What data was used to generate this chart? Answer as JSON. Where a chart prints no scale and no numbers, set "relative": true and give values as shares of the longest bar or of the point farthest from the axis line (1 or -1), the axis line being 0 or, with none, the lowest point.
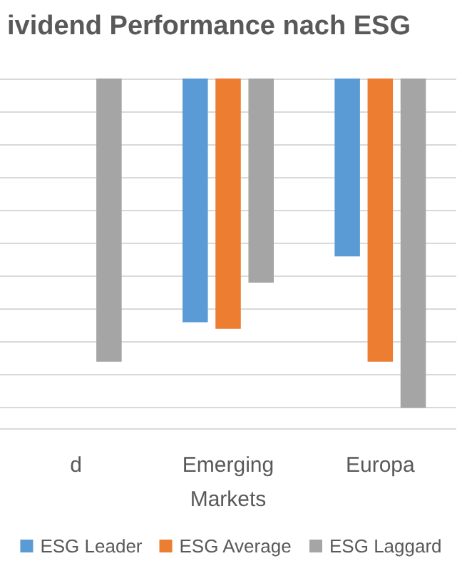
{
  "chart_data": {
    "type": "bar",
    "title": "ividend Performance nach ESG",
    "categories": [
      "d",
      "Emerging\nMarkets",
      "Europa"
    ],
    "relative": true,
    "grid": "y",
    "legend": "bottom",
    "series": [
      {
        "name": "ESG Leader",
        "color": "#5b9bd5",
        "values": [
          null,
          -0.74,
          -0.54
        ]
      },
      {
        "name": "ESG Average",
        "color": "#ed7d31",
        "values": [
          null,
          -0.76,
          -0.86
        ]
      },
      {
        "name": "ESG Laggard",
        "color": "#a5a5a5",
        "values": [
          -0.86,
          -0.62,
          -1
        ]
      }
    ]
  }
}
